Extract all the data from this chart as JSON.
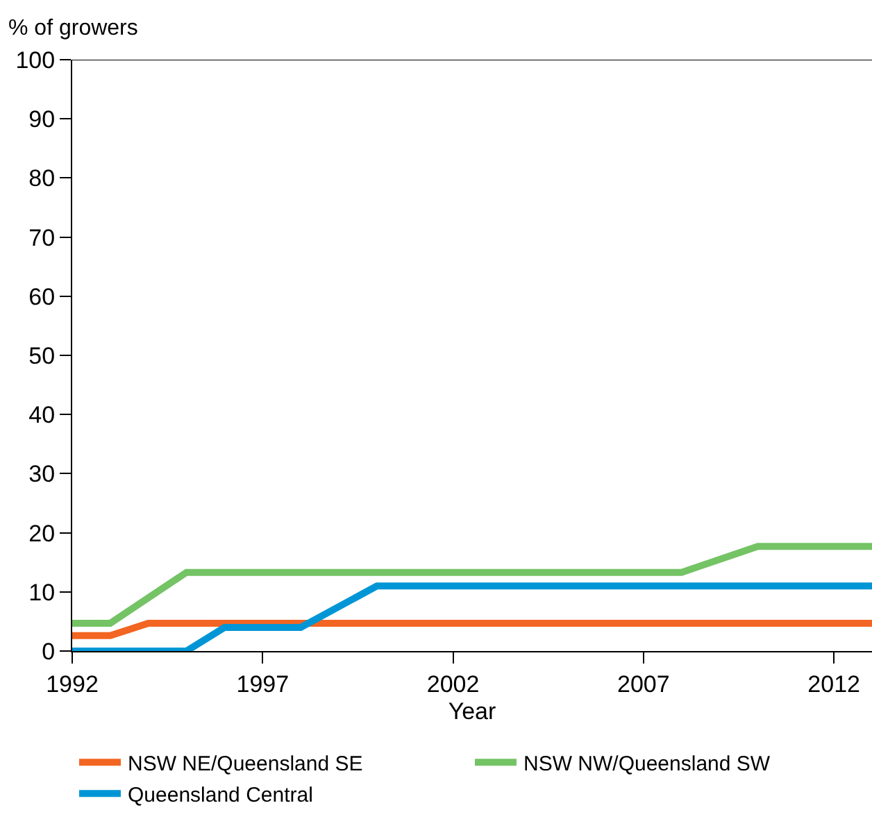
{
  "chart_data": {
    "type": "line",
    "ylabel": "% of growers",
    "xlabel": "Year",
    "xlim": [
      1992,
      2013
    ],
    "xticks": [
      1992,
      1997,
      2002,
      2007,
      2012
    ],
    "ylim": [
      0,
      100
    ],
    "yticks": [
      0,
      10,
      20,
      30,
      40,
      50,
      60,
      70,
      80,
      90,
      100
    ],
    "legend": "bottom",
    "marker": "none",
    "line_style": "solid",
    "series": [
      {
        "name": "NSW NE/Queensland SE",
        "color": "#f26522",
        "x": [
          1992,
          1993,
          1994,
          2013
        ],
        "values": [
          2.6,
          2.6,
          4.7,
          4.7
        ]
      },
      {
        "name": "NSW NW/Queensland SW",
        "color": "#74c365",
        "x": [
          1992,
          1993,
          1995,
          2008,
          2010,
          2013
        ],
        "values": [
          4.7,
          4.7,
          13.3,
          13.3,
          17.7,
          17.7
        ]
      },
      {
        "name": "Queensland Central",
        "color": "#0096d6",
        "x": [
          1992,
          1995,
          1996,
          1998,
          2000,
          2013
        ],
        "values": [
          0,
          0,
          4,
          4,
          11,
          11
        ]
      }
    ]
  }
}
